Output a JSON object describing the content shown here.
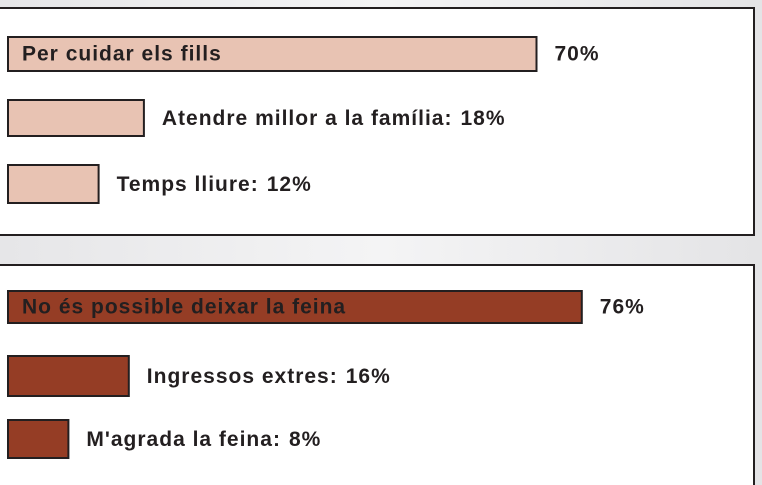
{
  "chart_data": [
    {
      "type": "bar",
      "categories": [
        "Per cuidar els fills",
        "Atendre millor a la família:",
        "Temps lliure:"
      ],
      "values": [
        70,
        18,
        12
      ],
      "value_labels": [
        "70%",
        "18%",
        "12%"
      ],
      "color": "#e8c3b3",
      "label_color": "#231f20"
    },
    {
      "type": "bar",
      "categories": [
        "No és possible deixar la feina",
        "Ingressos extres:",
        "M'agrada la feina:"
      ],
      "values": [
        76,
        16,
        8
      ],
      "value_labels": [
        "76%",
        "16%",
        "8%"
      ],
      "color": "#953d25",
      "label_color": "#ffffff"
    }
  ]
}
